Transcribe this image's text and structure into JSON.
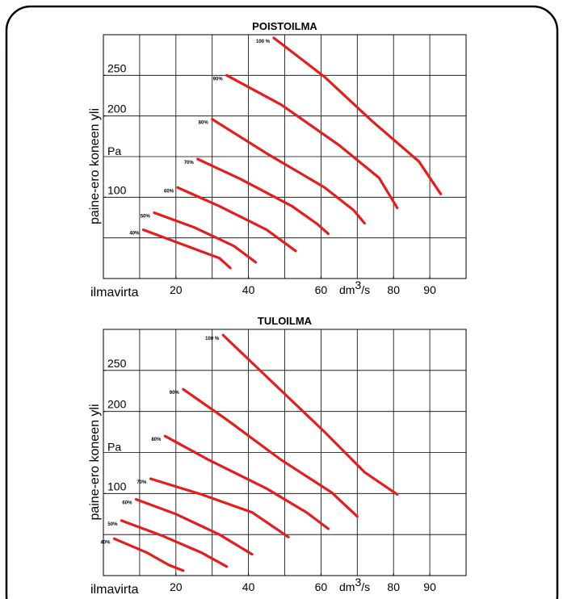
{
  "chart_data": [
    {
      "type": "line",
      "title": "POISTOILMA",
      "xlabel": "ilmavirta",
      "ylabel": "paine-ero koneen yli",
      "y_unit": "Pa",
      "x_unit": [
        "dm",
        "3",
        "/s"
      ],
      "xlim": [
        0,
        100
      ],
      "ylim": [
        0,
        300
      ],
      "xticks": [
        20,
        40,
        60,
        80,
        90
      ],
      "yticks": [
        100,
        200,
        250
      ],
      "xgrid": [
        0,
        10,
        20,
        30,
        40,
        50,
        60,
        70,
        80,
        90,
        100
      ],
      "ygrid": [
        0,
        50,
        100,
        150,
        200,
        250,
        300
      ],
      "series": [
        {
          "name": "100 %",
          "color": "#e41e1e",
          "x": [
            47,
            61,
            74,
            87,
            93
          ],
          "values": [
            296,
            248,
            194,
            144,
            104
          ]
        },
        {
          "name": "90%",
          "color": "#e41e1e",
          "x": [
            34,
            49,
            65,
            76,
            81
          ],
          "values": [
            250,
            214,
            164,
            124,
            87
          ]
        },
        {
          "name": "80%",
          "color": "#e41e1e",
          "x": [
            30,
            45,
            61,
            69,
            72
          ],
          "values": [
            196,
            154,
            112,
            84,
            68
          ]
        },
        {
          "name": "70%",
          "color": "#e41e1e",
          "x": [
            26,
            38,
            52,
            59,
            62
          ],
          "values": [
            147,
            122,
            89,
            67,
            55
          ]
        },
        {
          "name": "60%",
          "color": "#e41e1e",
          "x": [
            20.5,
            32,
            45,
            53
          ],
          "values": [
            112,
            89,
            60,
            34
          ]
        },
        {
          "name": "50%",
          "color": "#e41e1e",
          "x": [
            14,
            25,
            36,
            42
          ],
          "values": [
            81,
            63,
            40,
            20
          ]
        },
        {
          "name": "40%",
          "color": "#e41e1e",
          "x": [
            11,
            23,
            32,
            35
          ],
          "values": [
            60,
            40,
            25,
            13
          ]
        }
      ]
    },
    {
      "type": "line",
      "title": "TULOILMA",
      "xlabel": "ilmavirta",
      "ylabel": "paine-ero koneen yli",
      "y_unit": "Pa",
      "x_unit": [
        "dm",
        "3",
        "/s"
      ],
      "xlim": [
        0,
        100
      ],
      "ylim": [
        0,
        300
      ],
      "xticks": [
        20,
        40,
        60,
        80,
        90
      ],
      "yticks": [
        100,
        200,
        250
      ],
      "xgrid": [
        0,
        10,
        20,
        30,
        40,
        50,
        60,
        70,
        80,
        90,
        100
      ],
      "ygrid": [
        0,
        50,
        100,
        150,
        200,
        250,
        300
      ],
      "series": [
        {
          "name": "100 %",
          "color": "#e41e1e",
          "x": [
            33,
            47,
            61,
            72,
            81
          ],
          "values": [
            293,
            234,
            175,
            126,
            99
          ]
        },
        {
          "name": "90%",
          "color": "#e41e1e",
          "x": [
            22,
            34,
            49,
            63,
            70
          ],
          "values": [
            227,
            190,
            141,
            101,
            72
          ]
        },
        {
          "name": "80%",
          "color": "#e41e1e",
          "x": [
            17,
            29,
            45,
            56,
            62
          ],
          "values": [
            170,
            141,
            106,
            77,
            57
          ]
        },
        {
          "name": "70%",
          "color": "#e41e1e",
          "x": [
            13,
            27,
            41,
            51
          ],
          "values": [
            118,
            99,
            77,
            47
          ]
        },
        {
          "name": "60%",
          "color": "#e41e1e",
          "x": [
            9,
            20,
            32,
            41
          ],
          "values": [
            93,
            75,
            50,
            26
          ]
        },
        {
          "name": "50%",
          "color": "#e41e1e",
          "x": [
            5,
            16,
            27,
            34
          ],
          "values": [
            67,
            49,
            28,
            11
          ]
        },
        {
          "name": "40%",
          "color": "#e41e1e",
          "x": [
            3,
            12,
            18,
            22
          ],
          "values": [
            45,
            28,
            13,
            6
          ]
        }
      ]
    }
  ]
}
